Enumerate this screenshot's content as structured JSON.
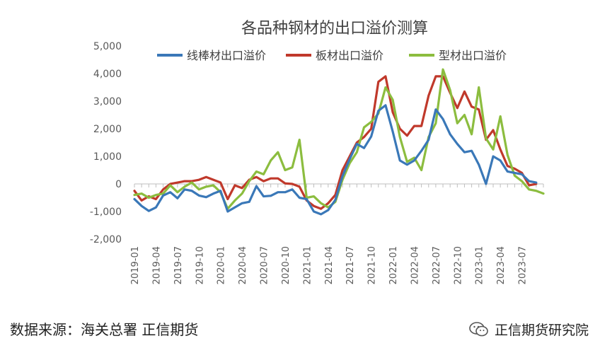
{
  "chart_data": {
    "type": "line",
    "title": "各品种钢材的出口溢价测算",
    "xlabel": "",
    "ylabel": "",
    "ylim": [
      -2000,
      5000
    ],
    "yticks": [
      -2000,
      -1000,
      0,
      1000,
      2000,
      3000,
      4000,
      5000
    ],
    "ytick_labels": [
      "-2,000",
      "-1,000",
      "0",
      "1,000",
      "2,000",
      "3,000",
      "4,000",
      "5,000"
    ],
    "xtick_labels": [
      "2019-01",
      "2019-04",
      "2019-07",
      "2019-10",
      "2020-01",
      "2020-04",
      "2020-07",
      "2020-10",
      "2021-01",
      "2021-04",
      "2021-07",
      "2021-10",
      "2022-01",
      "2022-04",
      "2022-07",
      "2022-10",
      "2023-01",
      "2023-04",
      "2023-07"
    ],
    "legend_position": "top",
    "grid": false,
    "series": [
      {
        "name": "线棒材出口溢价",
        "color": "#3a78b8",
        "x": [
          0,
          1,
          2,
          3,
          4,
          5,
          6,
          7,
          8,
          9,
          10,
          11,
          12,
          13,
          14,
          15,
          16,
          17,
          18,
          19,
          20,
          21,
          22,
          23,
          24,
          25,
          26,
          27,
          28,
          29,
          30,
          31,
          32,
          33,
          34,
          35,
          36,
          37,
          38,
          39,
          40,
          41,
          42,
          43,
          44,
          45,
          46,
          47,
          48,
          49,
          50,
          51,
          52,
          53,
          54,
          55,
          56,
          57
        ],
        "values": [
          -550,
          -800,
          -980,
          -850,
          -420,
          -300,
          -520,
          -200,
          -250,
          -420,
          -480,
          -350,
          -250,
          -1000,
          -850,
          -700,
          -650,
          -80,
          -450,
          -430,
          -300,
          -300,
          -200,
          -500,
          -550,
          -1000,
          -1100,
          -950,
          -580,
          280,
          900,
          1450,
          1300,
          1720,
          2650,
          2850,
          1900,
          850,
          700,
          850,
          1200,
          1600,
          2700,
          2350,
          1800,
          1450,
          1150,
          1200,
          700,
          0,
          1000,
          850,
          450,
          400,
          350,
          100,
          50,
          null
        ]
      },
      {
        "name": "板材出口溢价",
        "color": "#c0392b",
        "x": [
          0,
          1,
          2,
          3,
          4,
          5,
          6,
          7,
          8,
          9,
          10,
          11,
          12,
          13,
          14,
          15,
          16,
          17,
          18,
          19,
          20,
          21,
          22,
          23,
          24,
          25,
          26,
          27,
          28,
          29,
          30,
          31,
          32,
          33,
          34,
          35,
          36,
          37,
          38,
          39,
          40,
          41,
          42,
          43,
          44,
          45,
          46,
          47,
          48,
          49,
          50,
          51,
          52,
          53,
          54,
          55,
          56,
          57
        ],
        "values": [
          -250,
          -600,
          -450,
          -550,
          -200,
          0,
          50,
          100,
          100,
          150,
          250,
          150,
          50,
          -550,
          -50,
          -150,
          150,
          250,
          100,
          200,
          200,
          20,
          0,
          -100,
          -600,
          -800,
          -900,
          -700,
          -400,
          500,
          1000,
          1500,
          1700,
          2000,
          3700,
          3900,
          2600,
          2000,
          1750,
          2100,
          2100,
          3200,
          3900,
          3900,
          3300,
          2750,
          3350,
          2800,
          2700,
          1600,
          1950,
          1250,
          650,
          550,
          400,
          -50,
          0,
          null
        ]
      },
      {
        "name": "型材出口溢价",
        "color": "#8cbd3f",
        "x": [
          0,
          1,
          2,
          3,
          4,
          5,
          6,
          7,
          8,
          9,
          10,
          11,
          12,
          13,
          14,
          15,
          16,
          17,
          18,
          19,
          20,
          21,
          22,
          23,
          24,
          25,
          26,
          27,
          28,
          29,
          30,
          31,
          32,
          33,
          34,
          35,
          36,
          37,
          38,
          39,
          40,
          41,
          42,
          43,
          44,
          45,
          46,
          47,
          48,
          49,
          50,
          51,
          52,
          53,
          54,
          55,
          56,
          57
        ],
        "values": [
          -400,
          -350,
          -500,
          -400,
          -350,
          -50,
          -300,
          -100,
          50,
          -200,
          -100,
          -50,
          -300,
          -900,
          -600,
          -350,
          100,
          450,
          350,
          850,
          1150,
          500,
          600,
          1600,
          -500,
          -450,
          -700,
          -850,
          -650,
          150,
          750,
          1150,
          2050,
          2250,
          2550,
          3500,
          3050,
          1700,
          800,
          950,
          500,
          1700,
          2200,
          4150,
          3400,
          2200,
          2500,
          1800,
          3500,
          1650,
          1250,
          2450,
          1050,
          300,
          100,
          -200,
          -250,
          -350
        ]
      }
    ]
  },
  "footer": {
    "source": "数据来源：海关总署  正信期货",
    "brand": "正信期货研究院"
  }
}
